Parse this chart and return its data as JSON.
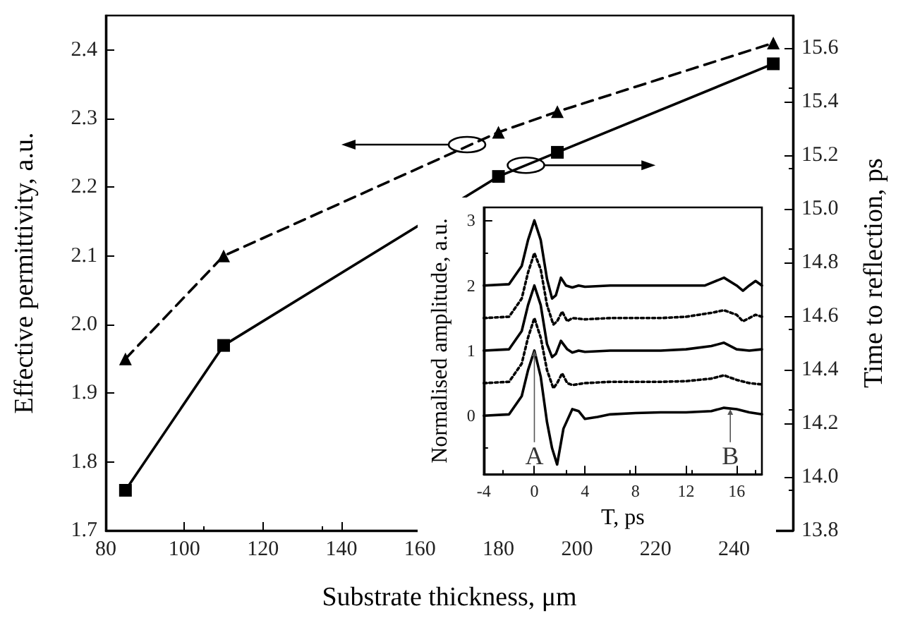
{
  "chart_data": [
    {
      "type": "line",
      "xlabel": "Substrate thickness, μm",
      "ylabel": "Effective permittivity, a.u.",
      "y2label": "Time to reflection, ps",
      "x": [
        85,
        110,
        180,
        195,
        250
      ],
      "series": [
        {
          "color": "#000000",
          "values": [
            1.95,
            2.1,
            2.28,
            2.31,
            2.41
          ],
          "marker": "triangle",
          "line_style": "dashed"
        },
        {
          "color": "#000000",
          "values": [
            13.95,
            14.49,
            15.12,
            15.21,
            15.54
          ],
          "marker": "square",
          "line_style": "solid",
          "axis": "y2"
        }
      ],
      "xlim": [
        80,
        255
      ],
      "xticks": [
        80,
        100,
        120,
        140,
        160,
        180,
        200,
        220,
        240
      ],
      "ylim": [
        1.7,
        2.45
      ],
      "yticks": [
        1.7,
        1.8,
        1.9,
        {
          "value": 2.0,
          "label": "2.0"
        },
        2.1,
        2.2,
        2.3,
        2.4
      ],
      "y2lim": [
        13.8,
        15.72
      ],
      "y2ticks": [
        13.8,
        {
          "value": 14.0,
          "label": "14.0"
        },
        14.2,
        14.4,
        14.6,
        14.8,
        {
          "value": 15.0,
          "label": "15.0"
        },
        15.2,
        15.4,
        15.6
      ]
    },
    {
      "type": "line",
      "xlabel": "T, ps",
      "ylabel": "Normalised amplitude, a.u.",
      "series": [
        {
          "color": "#000000",
          "line_style": "solid",
          "x": [
            -4,
            -2,
            -1,
            -0.5,
            0,
            0.5,
            1,
            1.4,
            1.7,
            2.1,
            2.5,
            3,
            3.5,
            4,
            6,
            8,
            10,
            12,
            13.5,
            15,
            16,
            16.5,
            17,
            17.5,
            18
          ],
          "values": [
            2.0,
            2.02,
            2.3,
            2.7,
            3.0,
            2.7,
            2.1,
            1.8,
            1.85,
            2.12,
            2.0,
            1.97,
            2.0,
            1.98,
            2.0,
            2.0,
            2.0,
            2.0,
            2.0,
            2.12,
            2.0,
            1.92,
            2.0,
            2.07,
            2.0
          ]
        },
        {
          "color": "#000000",
          "line_style": "dotted",
          "x": [
            -4,
            -2,
            -1,
            -0.5,
            0,
            0.5,
            1,
            1.5,
            1.8,
            2.2,
            2.6,
            3,
            4,
            6,
            8,
            10,
            12,
            14,
            15,
            16,
            16.5,
            17.5,
            18
          ],
          "values": [
            1.5,
            1.52,
            1.8,
            2.2,
            2.5,
            2.25,
            1.7,
            1.4,
            1.45,
            1.6,
            1.45,
            1.5,
            1.48,
            1.5,
            1.5,
            1.5,
            1.52,
            1.58,
            1.62,
            1.55,
            1.45,
            1.55,
            1.52
          ]
        },
        {
          "color": "#000000",
          "line_style": "solid",
          "x": [
            -4,
            -2,
            -1,
            -0.5,
            0,
            0.5,
            1,
            1.4,
            1.7,
            2.1,
            2.6,
            3,
            3.5,
            4,
            6,
            8,
            10,
            12,
            14,
            15,
            16,
            17,
            18
          ],
          "values": [
            1.0,
            1.02,
            1.3,
            1.7,
            2.0,
            1.7,
            1.1,
            0.9,
            0.95,
            1.15,
            1.02,
            0.97,
            1.0,
            0.98,
            1.0,
            1.0,
            1.0,
            1.02,
            1.07,
            1.12,
            1.02,
            1.0,
            1.02
          ]
        },
        {
          "color": "#000000",
          "line_style": "dotted",
          "x": [
            -4,
            -2,
            -1,
            -0.5,
            0,
            0.5,
            1,
            1.5,
            1.8,
            2.2,
            2.6,
            3,
            4,
            6,
            8,
            10,
            12,
            14,
            15,
            16,
            17,
            18
          ],
          "values": [
            0.5,
            0.52,
            0.8,
            1.2,
            1.5,
            1.2,
            0.7,
            0.42,
            0.5,
            0.65,
            0.5,
            0.47,
            0.5,
            0.52,
            0.52,
            0.52,
            0.53,
            0.57,
            0.62,
            0.55,
            0.5,
            0.48
          ]
        },
        {
          "color": "#000000",
          "line_style": "solid",
          "x": [
            -4,
            -2,
            -1,
            -0.5,
            0,
            0.5,
            1,
            1.4,
            1.8,
            2.3,
            3,
            3.5,
            4,
            5,
            6,
            8,
            10,
            12,
            14,
            15,
            16,
            17,
            18
          ],
          "values": [
            0.0,
            0.02,
            0.3,
            0.7,
            1.0,
            0.6,
            -0.1,
            -0.5,
            -0.75,
            -0.2,
            0.1,
            0.07,
            -0.05,
            -0.02,
            0.02,
            0.04,
            0.05,
            0.05,
            0.07,
            0.12,
            0.1,
            0.05,
            0.02
          ]
        }
      ],
      "xlim": [
        -4,
        18
      ],
      "xticks": [
        -4,
        0,
        4,
        8,
        12,
        16
      ],
      "ylim": [
        -0.9,
        3.2
      ],
      "yticks": [
        0,
        1,
        2,
        3
      ],
      "annotations": [
        {
          "text": "A",
          "x": 0,
          "y": 1.0
        },
        {
          "text": "B",
          "x": 15.5,
          "y": 0.1
        }
      ]
    }
  ]
}
